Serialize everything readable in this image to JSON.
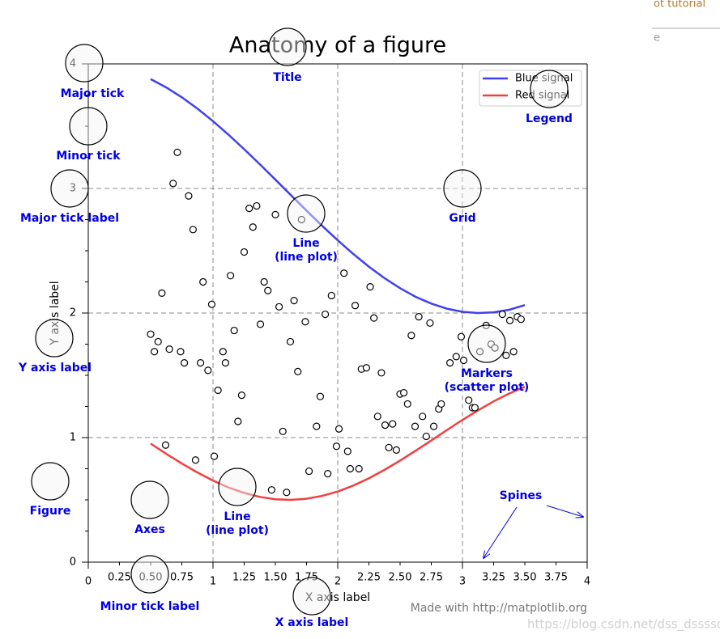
{
  "chart_data": {
    "type": "line",
    "title": "Anatomy of a figure",
    "xlabel": "X axis label",
    "ylabel": "Y axis label",
    "xlim": [
      0,
      4
    ],
    "ylim": [
      0,
      4
    ],
    "xticks": [
      0,
      1,
      2,
      3,
      4
    ],
    "xminorticks": [
      {
        "value": 0.25,
        "label": "0.25"
      },
      {
        "value": 0.5,
        "label": "0.50"
      },
      {
        "value": 0.75,
        "label": "0.75"
      },
      {
        "value": 1.25,
        "label": "1.25"
      },
      {
        "value": 1.5,
        "label": "1.50"
      },
      {
        "value": 1.75,
        "label": "1.75"
      },
      {
        "value": 2.25,
        "label": "2.25"
      },
      {
        "value": 2.5,
        "label": "2.50"
      },
      {
        "value": 2.75,
        "label": "2.75"
      },
      {
        "value": 3.25,
        "label": "3.25"
      },
      {
        "value": 3.5,
        "label": "3.50"
      },
      {
        "value": 3.75,
        "label": "3.75"
      }
    ],
    "yticks": [
      0,
      1,
      2,
      3,
      4
    ],
    "yminorticks": [
      0.25,
      0.5,
      0.75,
      1.25,
      1.5,
      1.75,
      2.25,
      2.5,
      2.75,
      3.25,
      3.5,
      3.75
    ],
    "grid": true,
    "legend": "upper right",
    "x": [
      0.5,
      0.625,
      0.75,
      0.875,
      1.0,
      1.125,
      1.25,
      1.375,
      1.5,
      1.625,
      1.75,
      1.875,
      2.0,
      2.125,
      2.25,
      2.375,
      2.5,
      2.625,
      2.75,
      2.875,
      3.0,
      3.125,
      3.25,
      3.375,
      3.5
    ],
    "series": [
      {
        "name": "Blue signal",
        "color": "#4040f0",
        "values": [
          3.878,
          3.811,
          3.732,
          3.641,
          3.54,
          3.431,
          3.315,
          3.195,
          3.071,
          2.946,
          2.822,
          2.7,
          2.584,
          2.474,
          2.372,
          2.28,
          2.199,
          2.13,
          2.076,
          2.035,
          2.01,
          2.0,
          2.006,
          2.026,
          2.064
        ]
      },
      {
        "name": "Red signal",
        "color": "#f04040",
        "values": [
          0.952,
          0.87,
          0.792,
          0.72,
          0.655,
          0.599,
          0.556,
          0.524,
          0.505,
          0.5,
          0.509,
          0.532,
          0.567,
          0.615,
          0.673,
          0.741,
          0.815,
          0.895,
          0.977,
          1.06,
          1.142,
          1.219,
          1.291,
          1.354,
          1.408
        ]
      }
    ],
    "scatter": {
      "type": "scatter",
      "x": [
        0.714,
        0.68,
        0.805,
        0.84,
        0.59,
        0.92,
        0.99,
        0.5,
        0.56,
        0.53,
        0.65,
        0.74,
        0.77,
        0.9,
        0.96,
        0.62,
        0.86,
        1.01,
        1.04,
        1.08,
        1.1,
        1.14,
        1.17,
        1.2,
        1.23,
        1.25,
        1.29,
        1.35,
        1.32,
        1.38,
        1.41,
        1.44,
        1.5,
        1.53,
        1.47,
        1.56,
        1.59,
        1.62,
        1.65,
        1.68,
        1.71,
        1.74,
        1.77,
        1.83,
        1.86,
        1.9,
        1.92,
        1.95,
        1.99,
        2.01,
        2.05,
        2.08,
        2.1,
        2.14,
        2.17,
        2.19,
        2.23,
        2.26,
        2.29,
        2.32,
        2.35,
        2.38,
        2.41,
        2.44,
        2.47,
        2.5,
        2.53,
        2.56,
        2.59,
        2.62,
        2.65,
        2.68,
        2.71,
        2.74,
        2.77,
        2.81,
        2.83,
        2.9,
        2.95,
        2.99,
        3.01,
        3.05,
        3.08,
        3.1,
        3.14,
        3.19,
        3.23,
        3.26,
        3.32,
        3.35,
        3.38,
        3.41,
        3.44,
        3.47
      ],
      "values": [
        3.29,
        3.04,
        2.94,
        2.67,
        2.16,
        2.25,
        2.07,
        1.83,
        1.77,
        1.69,
        1.71,
        1.69,
        1.6,
        1.6,
        1.54,
        0.94,
        0.82,
        0.85,
        1.38,
        1.69,
        1.6,
        2.3,
        1.86,
        1.13,
        1.34,
        2.49,
        2.84,
        2.86,
        2.69,
        1.91,
        2.25,
        2.18,
        2.79,
        2.05,
        0.58,
        1.05,
        0.56,
        1.77,
        2.1,
        1.53,
        2.75,
        1.93,
        0.73,
        1.09,
        1.33,
        1.99,
        0.71,
        2.14,
        0.93,
        1.07,
        2.32,
        0.89,
        0.75,
        2.06,
        0.75,
        1.55,
        1.56,
        2.21,
        1.96,
        1.17,
        1.52,
        1.1,
        0.92,
        1.11,
        0.9,
        1.35,
        1.36,
        1.27,
        1.82,
        1.09,
        1.97,
        1.17,
        1.01,
        1.92,
        1.09,
        1.23,
        1.27,
        1.6,
        1.65,
        1.81,
        1.62,
        1.3,
        1.24,
        1.24,
        1.69,
        1.9,
        1.75,
        1.72,
        1.99,
        1.66,
        1.94,
        1.69,
        1.97,
        1.95
      ]
    },
    "annotations": [
      {
        "label": "Major tick"
      },
      {
        "label": "Minor tick"
      },
      {
        "label": "Major tick label"
      },
      {
        "label": "Title"
      },
      {
        "label": "Legend"
      },
      {
        "label": "Grid"
      },
      {
        "label": [
          "Line",
          "(line plot)"
        ]
      },
      {
        "label": "Y axis label"
      },
      {
        "label": [
          "Markers",
          "(scatter plot)"
        ]
      },
      {
        "label": "Figure"
      },
      {
        "label": "Axes"
      },
      {
        "label": [
          "Line",
          "(line plot)"
        ]
      },
      {
        "label": "Minor tick label"
      },
      {
        "label": "X axis label"
      },
      {
        "label": "Spines"
      }
    ],
    "footer": "Made with http://matplotlib.org"
  },
  "page": {
    "header_fragments": [
      "ot tutorial",
      "e"
    ],
    "watermark": "https://blog.csdn.net/dss_dssssd"
  }
}
